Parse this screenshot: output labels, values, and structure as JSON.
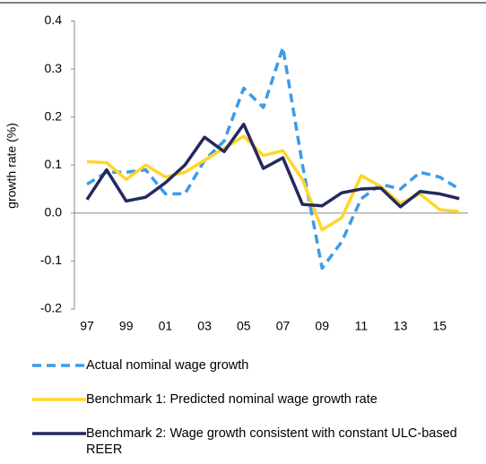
{
  "chart_data": {
    "type": "line",
    "y_label": "growth rate (%)",
    "categories": [
      "97",
      null,
      "99",
      null,
      "01",
      null,
      "03",
      null,
      "05",
      null,
      "07",
      null,
      "09",
      null,
      "11",
      null,
      "13",
      null,
      "15",
      null
    ],
    "series": [
      {
        "name": "Actual nominal wage growth",
        "color": "#3d9be9",
        "dashed": true,
        "values": [
          0.06,
          0.085,
          0.085,
          0.09,
          0.04,
          0.04,
          0.11,
          0.15,
          0.26,
          0.22,
          0.345,
          0.1,
          -0.115,
          -0.06,
          0.03,
          0.06,
          0.05,
          0.085,
          0.075,
          0.05
        ]
      },
      {
        "name": "Benchmark 1: Predicted nominal wage growth rate",
        "color": "#ffd52a",
        "dashed": false,
        "values": [
          0.107,
          0.105,
          0.07,
          0.1,
          0.075,
          0.085,
          0.11,
          0.135,
          0.16,
          0.12,
          0.13,
          0.07,
          -0.035,
          -0.01,
          0.078,
          0.055,
          0.02,
          0.04,
          0.007,
          0.003
        ]
      },
      {
        "name": "Benchmark 2: Wage growth consistent with constant ULC-based REER",
        "color": "#24295e",
        "dashed": false,
        "values": [
          0.028,
          0.09,
          0.025,
          0.033,
          0.063,
          0.1,
          0.158,
          0.128,
          0.185,
          0.093,
          0.115,
          0.018,
          0.015,
          0.042,
          0.05,
          0.052,
          0.013,
          0.045,
          0.04,
          0.03
        ]
      }
    ],
    "ylim": [
      -0.2,
      0.4
    ],
    "yticks": [
      -0.2,
      -0.1,
      {
        "value": 0,
        "label": "0.0"
      },
      0.1,
      0.2,
      0.3,
      0.4
    ],
    "grid": false,
    "legend": "bottom"
  }
}
